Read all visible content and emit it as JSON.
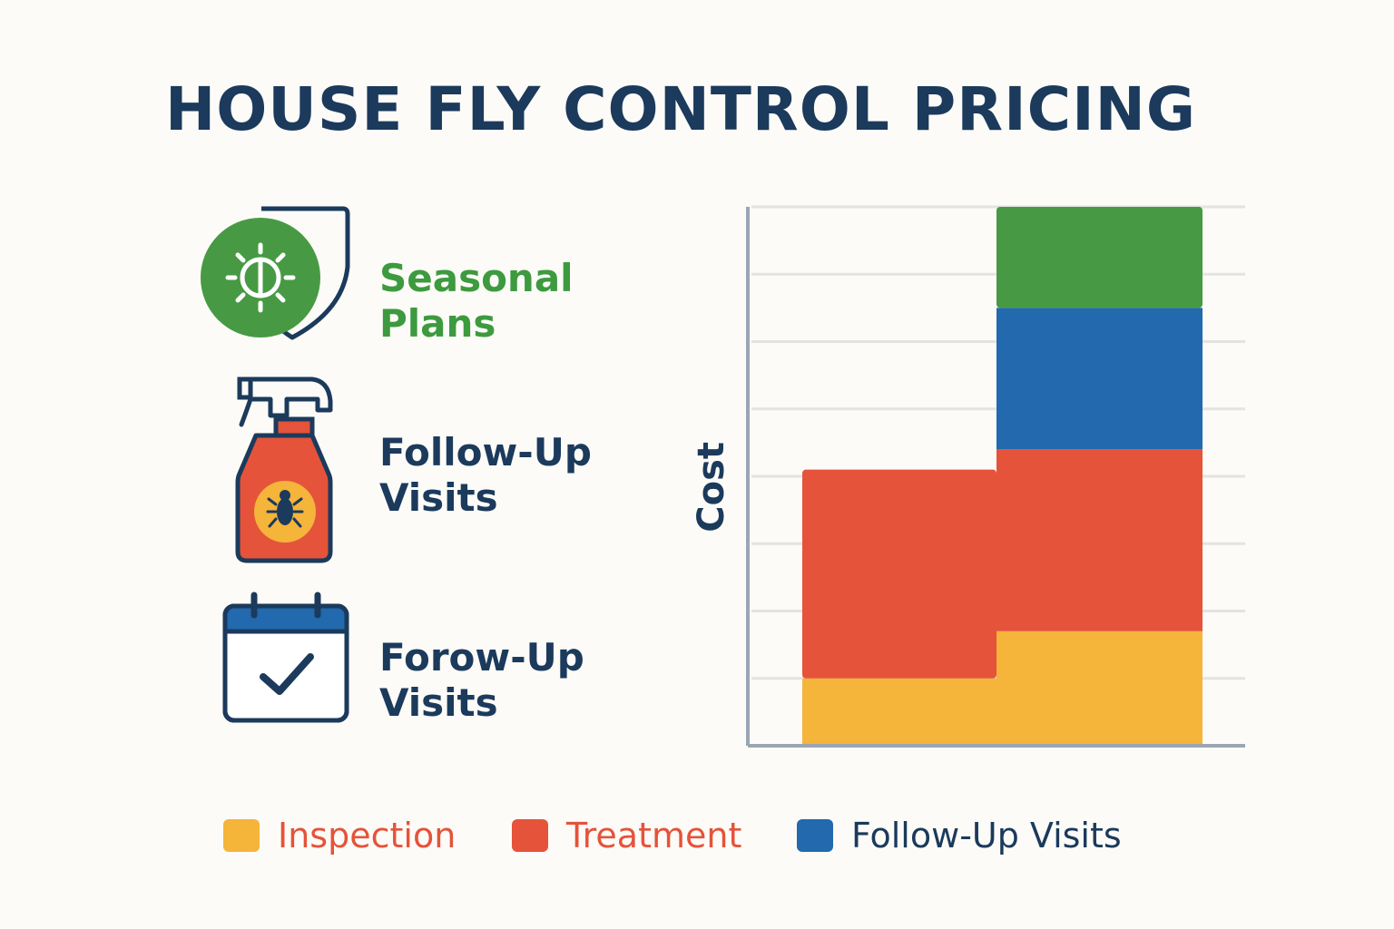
{
  "title": "HOUSE FLY CONTROL PRICING",
  "features": [
    {
      "icon": "shield-sun-icon",
      "lines": [
        "Seasonal",
        "Plans"
      ],
      "color": "#3d9a3f"
    },
    {
      "icon": "spray-bottle-icon",
      "lines": [
        "Follow-Up",
        "Visits"
      ],
      "color": "#1b3a5c"
    },
    {
      "icon": "calendar-check-icon",
      "lines": [
        "Forow-Up",
        "Visits"
      ],
      "color": "#1b3a5c"
    }
  ],
  "colors": {
    "title": "#1b3a5c",
    "inspection": "#f5b43a",
    "treatment": "#e5533a",
    "follow_up": "#2269ad",
    "seasonal": "#479a43",
    "axis": "#9aa6b2",
    "grid": "#e3e3e3"
  },
  "chart_data": {
    "type": "bar",
    "stacked": true,
    "categories": [
      "",
      ""
    ],
    "ylabel": "Cost",
    "xlabel": "",
    "ylim": [
      0,
      8
    ],
    "grid": true,
    "series": [
      {
        "key": "inspection",
        "values": [
          1.0,
          1.7
        ]
      },
      {
        "key": "treatment",
        "values": [
          3.1,
          2.7
        ]
      },
      {
        "key": "follow_up",
        "values": [
          0,
          2.1
        ]
      },
      {
        "key": "seasonal",
        "values": [
          0,
          1.5
        ]
      }
    ],
    "legend_position": "bottom",
    "legend": [
      {
        "label": "Inspection",
        "key": "inspection"
      },
      {
        "label": "Treatment",
        "key": "treatment"
      },
      {
        "label": "Follow-Up Visits",
        "key": "follow_up"
      }
    ]
  }
}
